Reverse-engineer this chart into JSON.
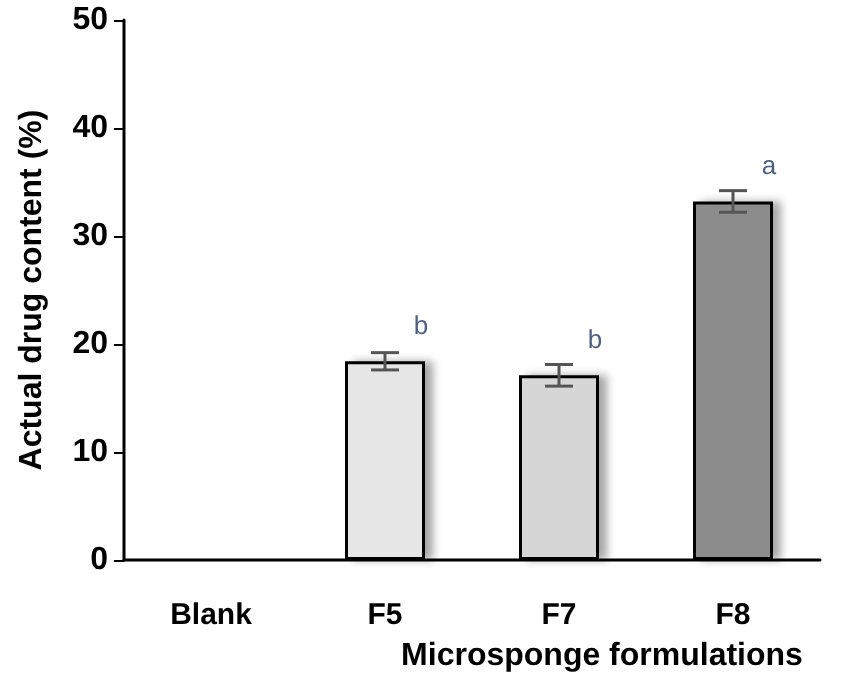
{
  "chart_data": {
    "type": "bar",
    "xlabel": "Microsponge formulations",
    "ylabel": "Actual drug content (%)",
    "categories": [
      "Blank",
      "F5",
      "F7",
      "F8"
    ],
    "values": [
      0,
      18.4,
      17.1,
      33.2
    ],
    "errors": [
      null,
      0.8,
      1.0,
      1.0
    ],
    "colors": [
      "#e0e0e0",
      "#e6e6e6",
      "#d6d6d6",
      "#8c8c8c"
    ],
    "annotations": [
      {
        "text": "b",
        "x": "F5",
        "y": 18.4
      },
      {
        "text": "b",
        "x": "F7",
        "y": 17.1
      },
      {
        "text": "a",
        "x": "F8",
        "y": 33.2
      }
    ],
    "ylim": [
      0,
      50
    ],
    "yticks": [
      0,
      10,
      20,
      30,
      40,
      50
    ],
    "grid": false
  }
}
